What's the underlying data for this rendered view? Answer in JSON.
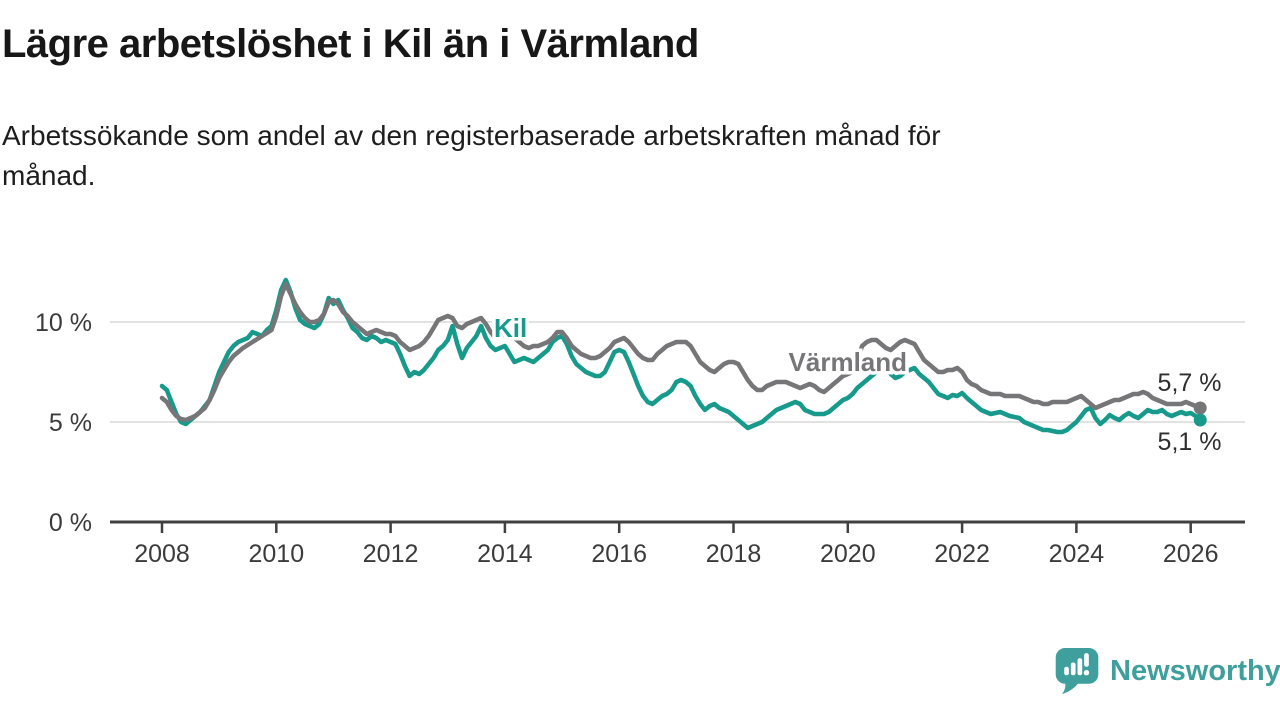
{
  "header": {
    "title": "Lägre arbetslöshet i Kil än i Värmland",
    "subtitle": "Arbetssökande som andel av den registerbaserade arbetskraften månad för månad.",
    "subtitle_lines": [
      "Arbetssökande som andel av den registerbaserade arbetskraften månad för",
      "månad."
    ]
  },
  "footer": {
    "brand": "Newsworthy",
    "brand_color": "#3f9f9c",
    "logo_icon": "speech-bubble-bar-chart-icon"
  },
  "colors": {
    "kil": "#179a8b",
    "varmland": "#767679",
    "axis": "#404040",
    "gridline": "#e2e2e2",
    "tick_label": "#3b3b3b",
    "end_label": "#2e2e2e"
  },
  "chart_data": {
    "type": "line",
    "unit": "%",
    "x_start": "2008-01",
    "x_end": "2026-03",
    "frequency": "monthly",
    "ylim": [
      0,
      13.3
    ],
    "grid": "horizontal-only",
    "legend_position": "inline-labels-on-lines",
    "xticks": [
      2008,
      2010,
      2012,
      2014,
      2016,
      2018,
      2020,
      2022,
      2024,
      2026
    ],
    "yticks": [
      {
        "value": 0,
        "label": "0 %"
      },
      {
        "value": 5,
        "label": "5 %"
      },
      {
        "value": 10,
        "label": "10 %"
      }
    ],
    "series": [
      {
        "name": "Kil",
        "key": "kil",
        "color": "#179a8b",
        "end_value_label": "5,1 %",
        "values": [
          6.8,
          6.6,
          6.0,
          5.4,
          5.0,
          4.9,
          5.1,
          5.3,
          5.5,
          5.8,
          6.1,
          6.8,
          7.5,
          8.0,
          8.5,
          8.8,
          9.0,
          9.1,
          9.2,
          9.5,
          9.4,
          9.3,
          9.6,
          9.8,
          10.6,
          11.6,
          12.1,
          11.5,
          10.7,
          10.1,
          9.9,
          9.8,
          9.7,
          9.9,
          10.4,
          11.2,
          10.9,
          11.1,
          10.6,
          10.2,
          9.7,
          9.5,
          9.2,
          9.1,
          9.3,
          9.2,
          9.0,
          9.1,
          9.0,
          8.9,
          8.4,
          7.8,
          7.3,
          7.5,
          7.4,
          7.6,
          7.9,
          8.2,
          8.6,
          8.8,
          9.1,
          9.8,
          8.9,
          8.2,
          8.7,
          9.0,
          9.3,
          9.8,
          9.2,
          8.8,
          8.6,
          8.7,
          8.8,
          8.4,
          8.0,
          8.1,
          8.2,
          8.1,
          8.0,
          8.2,
          8.4,
          8.6,
          9.0,
          9.2,
          9.3,
          8.9,
          8.3,
          7.9,
          7.7,
          7.5,
          7.4,
          7.3,
          7.3,
          7.5,
          8.0,
          8.5,
          8.6,
          8.5,
          8.0,
          7.4,
          6.8,
          6.3,
          6.0,
          5.9,
          6.1,
          6.3,
          6.4,
          6.6,
          7.0,
          7.1,
          7.0,
          6.8,
          6.3,
          5.9,
          5.6,
          5.8,
          5.9,
          5.7,
          5.6,
          5.5,
          5.3,
          5.1,
          4.9,
          4.7,
          4.8,
          4.9,
          5.0,
          5.2,
          5.4,
          5.6,
          5.7,
          5.8,
          5.9,
          6.0,
          5.9,
          5.6,
          5.5,
          5.4,
          5.4,
          5.4,
          5.5,
          5.7,
          5.9,
          6.1,
          6.2,
          6.4,
          6.7,
          6.9,
          7.1,
          7.3,
          7.5,
          7.6,
          7.7,
          7.4,
          7.2,
          7.3,
          7.5,
          7.6,
          7.7,
          7.4,
          7.2,
          7.0,
          6.7,
          6.4,
          6.3,
          6.2,
          6.35,
          6.3,
          6.45,
          6.2,
          6.0,
          5.8,
          5.6,
          5.5,
          5.4,
          5.45,
          5.5,
          5.4,
          5.3,
          5.25,
          5.2,
          5.0,
          4.9,
          4.8,
          4.7,
          4.6,
          4.6,
          4.55,
          4.5,
          4.5,
          4.6,
          4.8,
          5.0,
          5.3,
          5.6,
          5.7,
          5.2,
          4.9,
          5.1,
          5.35,
          5.2,
          5.1,
          5.3,
          5.45,
          5.3,
          5.2,
          5.4,
          5.6,
          5.5,
          5.5,
          5.6,
          5.4,
          5.3,
          5.4,
          5.5,
          5.4,
          5.45,
          5.3,
          5.1
        ]
      },
      {
        "name": "Värmland",
        "key": "varmland",
        "color": "#767679",
        "end_value_label": "5,7 %",
        "values": [
          6.2,
          6.0,
          5.6,
          5.3,
          5.15,
          5.1,
          5.2,
          5.3,
          5.5,
          5.7,
          6.1,
          6.6,
          7.2,
          7.6,
          8.0,
          8.3,
          8.5,
          8.7,
          8.85,
          9.0,
          9.15,
          9.3,
          9.45,
          9.6,
          10.3,
          11.3,
          11.9,
          11.4,
          10.9,
          10.5,
          10.2,
          10.0,
          10.0,
          10.1,
          10.4,
          11.0,
          11.1,
          10.9,
          10.5,
          10.3,
          10.0,
          9.8,
          9.6,
          9.4,
          9.5,
          9.6,
          9.5,
          9.4,
          9.4,
          9.3,
          9.0,
          8.8,
          8.6,
          8.7,
          8.8,
          9.0,
          9.3,
          9.7,
          10.1,
          10.2,
          10.3,
          10.2,
          9.8,
          9.7,
          9.9,
          10.0,
          10.1,
          10.2,
          9.9,
          9.5,
          9.2,
          9.3,
          9.4,
          9.3,
          9.2,
          9.0,
          8.8,
          8.7,
          8.8,
          8.8,
          8.9,
          9.0,
          9.2,
          9.5,
          9.5,
          9.2,
          8.8,
          8.6,
          8.4,
          8.3,
          8.2,
          8.2,
          8.3,
          8.5,
          8.7,
          9.0,
          9.1,
          9.2,
          9.0,
          8.7,
          8.4,
          8.2,
          8.1,
          8.1,
          8.4,
          8.6,
          8.8,
          8.9,
          9.0,
          9.0,
          9.0,
          8.8,
          8.4,
          8.0,
          7.8,
          7.6,
          7.5,
          7.7,
          7.9,
          8.0,
          8.0,
          7.9,
          7.5,
          7.1,
          6.8,
          6.6,
          6.6,
          6.8,
          6.9,
          7.0,
          7.0,
          7.0,
          6.9,
          6.8,
          6.7,
          6.8,
          6.9,
          6.8,
          6.6,
          6.5,
          6.7,
          6.9,
          7.1,
          7.3,
          7.4,
          7.5,
          8.1,
          8.8,
          9.0,
          9.1,
          9.1,
          8.9,
          8.7,
          8.6,
          8.8,
          9.0,
          9.1,
          9.0,
          8.9,
          8.5,
          8.1,
          7.9,
          7.7,
          7.5,
          7.5,
          7.6,
          7.6,
          7.7,
          7.5,
          7.1,
          6.9,
          6.8,
          6.6,
          6.5,
          6.4,
          6.4,
          6.4,
          6.3,
          6.3,
          6.3,
          6.3,
          6.2,
          6.1,
          6.0,
          6.0,
          5.9,
          5.9,
          6.0,
          6.0,
          6.0,
          6.0,
          6.1,
          6.2,
          6.3,
          6.1,
          5.9,
          5.7,
          5.8,
          5.9,
          6.0,
          6.1,
          6.1,
          6.2,
          6.3,
          6.4,
          6.4,
          6.5,
          6.4,
          6.2,
          6.1,
          6.0,
          5.9,
          5.9,
          5.9,
          5.9,
          6.0,
          5.9,
          5.8,
          5.7
        ]
      }
    ],
    "annotations": [
      {
        "name": "series-label-kil",
        "text": "Kil",
        "year": 2014.1,
        "value": 9.25,
        "color": "#179a8b",
        "anchor": "middle",
        "weight": "bold",
        "size": 26,
        "halo": 7
      },
      {
        "name": "series-label-varmland",
        "text": "Värmland",
        "year": 2020.0,
        "value": 7.55,
        "color": "#767679",
        "anchor": "middle",
        "weight": "bold",
        "size": 26,
        "halo": 7
      },
      {
        "name": "end-value-label-varmland",
        "text": "5,7 %",
        "year": 2025.42,
        "value": 6.55,
        "color": "#2e2e2e",
        "anchor": "start",
        "weight": "normal",
        "size": 25,
        "halo": 0
      },
      {
        "name": "end-value-label-kil",
        "text": "5,1 %",
        "year": 2025.42,
        "value": 3.6,
        "color": "#2e2e2e",
        "anchor": "start",
        "weight": "normal",
        "size": 25,
        "halo": 0
      }
    ]
  }
}
